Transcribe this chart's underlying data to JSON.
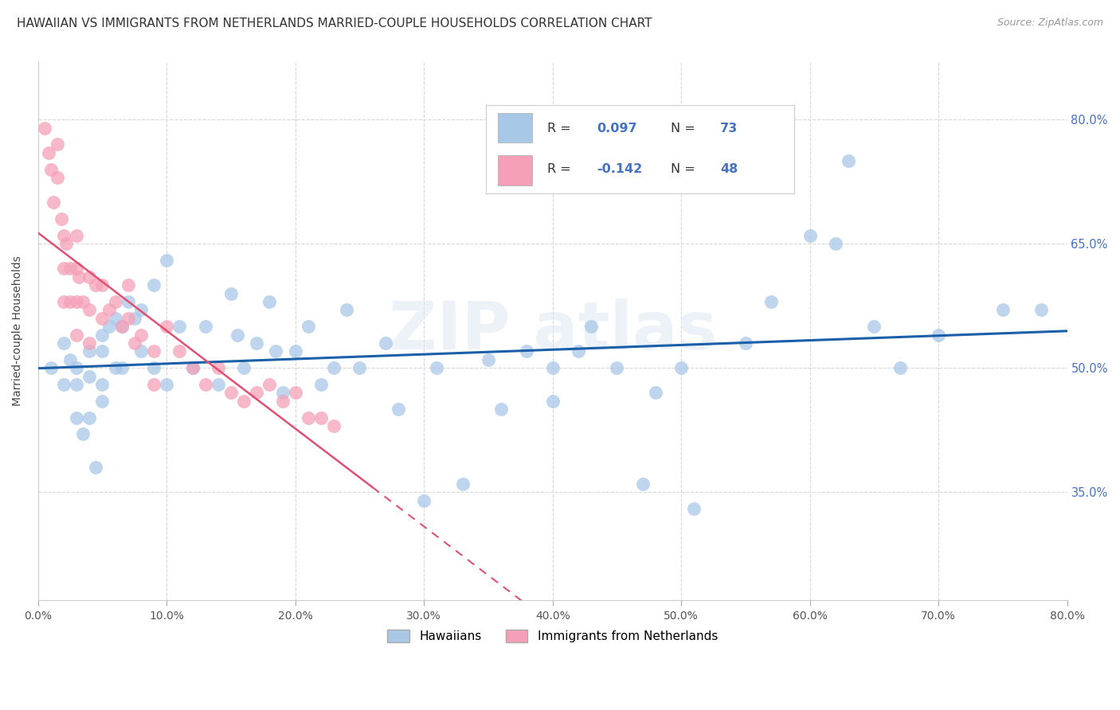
{
  "title": "HAWAIIAN VS IMMIGRANTS FROM NETHERLANDS MARRIED-COUPLE HOUSEHOLDS CORRELATION CHART",
  "source": "Source: ZipAtlas.com",
  "ylabel": "Married-couple Households",
  "xlim": [
    0.0,
    0.8
  ],
  "ylim": [
    0.22,
    0.87
  ],
  "hawaiian_R": 0.097,
  "hawaiian_N": 73,
  "netherlands_R": -0.142,
  "netherlands_N": 48,
  "hawaiian_color": "#a8c8e8",
  "netherlands_color": "#f5a0b8",
  "hawaiian_line_color": "#1a5fa8",
  "netherlands_line_color": "#e05070",
  "grid_color": "#d8d8d8",
  "background_color": "#ffffff",
  "title_fontsize": 11,
  "legend_label_hawaii": "Hawaiians",
  "legend_label_netherlands": "Immigrants from Netherlands",
  "y_tick_vals": [
    0.35,
    0.5,
    0.65,
    0.8
  ],
  "y_tick_labels": [
    "35.0%",
    "50.0%",
    "65.0%",
    "80.0%"
  ],
  "x_tick_vals": [
    0.0,
    0.1,
    0.2,
    0.3,
    0.4,
    0.5,
    0.6,
    0.7,
    0.8
  ],
  "x_tick_labels": [
    "0.0%",
    "10.0%",
    "20.0%",
    "30.0%",
    "40.0%",
    "50.0%",
    "60.0%",
    "70.0%",
    "80.0%"
  ],
  "hawaiian_x": [
    0.01,
    0.02,
    0.02,
    0.025,
    0.03,
    0.03,
    0.03,
    0.035,
    0.04,
    0.04,
    0.04,
    0.045,
    0.05,
    0.05,
    0.05,
    0.05,
    0.055,
    0.06,
    0.06,
    0.065,
    0.065,
    0.07,
    0.075,
    0.08,
    0.08,
    0.09,
    0.09,
    0.1,
    0.1,
    0.11,
    0.12,
    0.13,
    0.14,
    0.15,
    0.155,
    0.16,
    0.17,
    0.18,
    0.185,
    0.19,
    0.2,
    0.21,
    0.22,
    0.23,
    0.24,
    0.25,
    0.27,
    0.28,
    0.3,
    0.31,
    0.33,
    0.35,
    0.36,
    0.38,
    0.4,
    0.4,
    0.42,
    0.43,
    0.45,
    0.47,
    0.48,
    0.5,
    0.51,
    0.55,
    0.57,
    0.6,
    0.62,
    0.63,
    0.65,
    0.67,
    0.7,
    0.75,
    0.78
  ],
  "hawaiian_y": [
    0.5,
    0.48,
    0.53,
    0.51,
    0.5,
    0.48,
    0.44,
    0.42,
    0.52,
    0.49,
    0.44,
    0.38,
    0.54,
    0.52,
    0.48,
    0.46,
    0.55,
    0.56,
    0.5,
    0.55,
    0.5,
    0.58,
    0.56,
    0.57,
    0.52,
    0.6,
    0.5,
    0.63,
    0.48,
    0.55,
    0.5,
    0.55,
    0.48,
    0.59,
    0.54,
    0.5,
    0.53,
    0.58,
    0.52,
    0.47,
    0.52,
    0.55,
    0.48,
    0.5,
    0.57,
    0.5,
    0.53,
    0.45,
    0.34,
    0.5,
    0.36,
    0.51,
    0.45,
    0.52,
    0.5,
    0.46,
    0.52,
    0.55,
    0.5,
    0.36,
    0.47,
    0.5,
    0.33,
    0.53,
    0.58,
    0.66,
    0.65,
    0.75,
    0.55,
    0.5,
    0.54,
    0.57,
    0.57
  ],
  "netherlands_x": [
    0.005,
    0.008,
    0.01,
    0.012,
    0.015,
    0.015,
    0.018,
    0.02,
    0.02,
    0.02,
    0.022,
    0.025,
    0.025,
    0.03,
    0.03,
    0.03,
    0.03,
    0.032,
    0.035,
    0.04,
    0.04,
    0.04,
    0.045,
    0.05,
    0.05,
    0.055,
    0.06,
    0.065,
    0.07,
    0.07,
    0.075,
    0.08,
    0.09,
    0.09,
    0.1,
    0.11,
    0.12,
    0.13,
    0.14,
    0.15,
    0.16,
    0.17,
    0.18,
    0.19,
    0.2,
    0.21,
    0.22,
    0.23
  ],
  "netherlands_y": [
    0.79,
    0.76,
    0.74,
    0.7,
    0.77,
    0.73,
    0.68,
    0.66,
    0.62,
    0.58,
    0.65,
    0.62,
    0.58,
    0.66,
    0.62,
    0.58,
    0.54,
    0.61,
    0.58,
    0.61,
    0.57,
    0.53,
    0.6,
    0.6,
    0.56,
    0.57,
    0.58,
    0.55,
    0.6,
    0.56,
    0.53,
    0.54,
    0.52,
    0.48,
    0.55,
    0.52,
    0.5,
    0.48,
    0.5,
    0.47,
    0.46,
    0.47,
    0.48,
    0.46,
    0.47,
    0.44,
    0.44,
    0.43
  ]
}
